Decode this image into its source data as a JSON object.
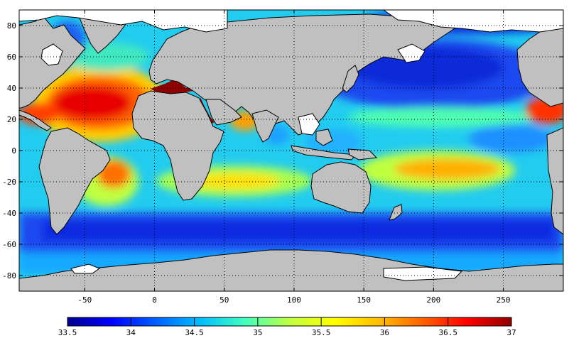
{
  "map": {
    "projection": "equirectangular",
    "lon_range": [
      -97,
      293
    ],
    "lat_range": [
      -90,
      90
    ],
    "grid": "dotted",
    "land_color": "#c0c0c0",
    "ice_color": "#ffffff",
    "x_ticks": [
      {
        "value": -50,
        "label": "-50"
      },
      {
        "value": 0,
        "label": "0"
      },
      {
        "value": 50,
        "label": "50"
      },
      {
        "value": 100,
        "label": "100"
      },
      {
        "value": 150,
        "label": "150"
      },
      {
        "value": 200,
        "label": "200"
      },
      {
        "value": 250,
        "label": "250"
      }
    ],
    "y_ticks": [
      {
        "value": 80,
        "label": "80"
      },
      {
        "value": 60,
        "label": "60"
      },
      {
        "value": 40,
        "label": "40"
      },
      {
        "value": 20,
        "label": "20"
      },
      {
        "value": 0,
        "label": "0"
      },
      {
        "value": -20,
        "label": "-20"
      },
      {
        "value": -40,
        "label": "-40"
      },
      {
        "value": -60,
        "label": "-60"
      },
      {
        "value": -80,
        "label": "-80"
      }
    ]
  },
  "colorbar": {
    "min": 33.5,
    "max": 37,
    "labels": [
      {
        "value": 33.5,
        "label": "33.5"
      },
      {
        "value": 34,
        "label": "34"
      },
      {
        "value": 34.5,
        "label": "34.5"
      },
      {
        "value": 35,
        "label": "35"
      },
      {
        "value": 35.5,
        "label": "35.5"
      },
      {
        "value": 36,
        "label": "36"
      },
      {
        "value": 36.5,
        "label": "36.5"
      },
      {
        "value": 37,
        "label": "37"
      }
    ],
    "colors": [
      "#00008f",
      "#0000ff",
      "#0060ff",
      "#00bfff",
      "#40ffbf",
      "#bfff40",
      "#ffff00",
      "#ffbf00",
      "#ff6000",
      "#ff0000",
      "#8f0000"
    ]
  }
}
